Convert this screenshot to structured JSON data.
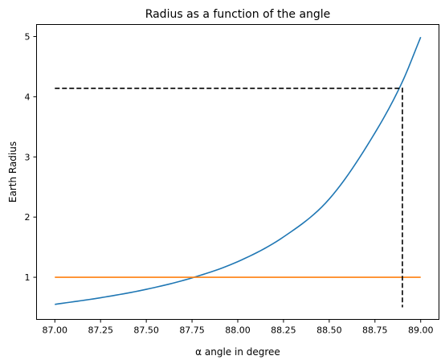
{
  "chart_data": {
    "type": "line",
    "title": "Radius as a function of the angle",
    "xlabel": "α angle in degree",
    "ylabel": "Earth Radius",
    "xlim": [
      86.9,
      89.1
    ],
    "ylim": [
      0.3,
      5.2
    ],
    "xticks": [
      87.0,
      87.25,
      87.5,
      87.75,
      88.0,
      88.25,
      88.5,
      88.75,
      89.0
    ],
    "xtick_labels": [
      "87.00",
      "87.25",
      "87.50",
      "87.75",
      "88.00",
      "88.25",
      "88.50",
      "88.75",
      "89.00"
    ],
    "yticks": [
      1,
      2,
      3,
      4,
      5
    ],
    "ytick_labels": [
      "1",
      "2",
      "3",
      "4",
      "5"
    ],
    "grid": false,
    "series": [
      {
        "color": "#1f77b4",
        "x": [
          87.0,
          87.25,
          87.5,
          87.75,
          88.0,
          88.25,
          88.5,
          88.75,
          88.9,
          89.0
        ],
        "y": [
          0.55,
          0.66,
          0.8,
          0.99,
          1.26,
          1.67,
          2.3,
          3.4,
          4.25,
          4.99
        ]
      },
      {
        "color": "#ff7f0e",
        "x": [
          87.0,
          89.0
        ],
        "y": [
          1.0,
          1.0
        ]
      }
    ],
    "annotations": [
      {
        "style": "dashed",
        "color": "#000000",
        "x": [
          87.0,
          88.9,
          88.9
        ],
        "y": [
          4.14,
          4.14,
          0.5
        ]
      }
    ]
  }
}
